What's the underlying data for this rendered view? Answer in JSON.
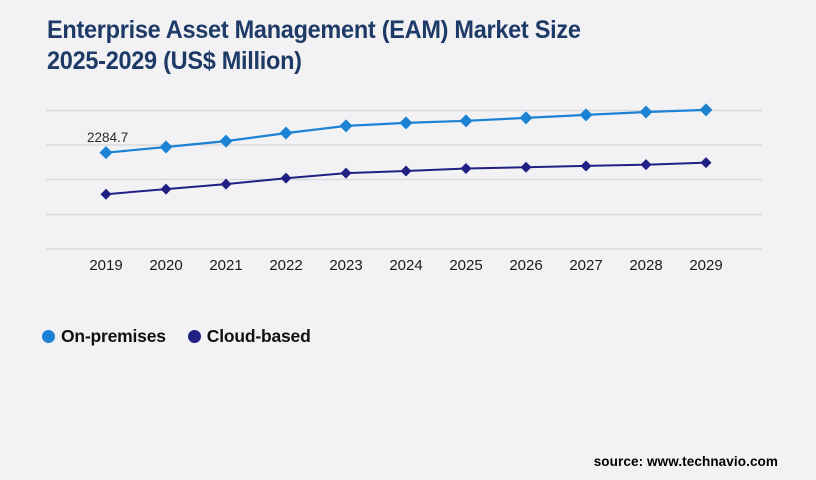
{
  "title": {
    "line1": "Enterprise Asset Management (EAM) Market Size",
    "line2": "2025-2029 (US$ Million)"
  },
  "source_text": "source: www.technavio.com",
  "colors": {
    "background": "#f2f2f4",
    "title": "#1e3a66",
    "gridline": "#d7d7da",
    "on_premises": "#1b82d4",
    "cloud_based": "#202084",
    "axis_text": "#1c1c1c",
    "value_label": "#2b2b2b"
  },
  "legend": {
    "items": [
      {
        "label": "On-premises",
        "color": "#1b82d4"
      },
      {
        "label": "Cloud-based",
        "color": "#202084"
      }
    ]
  },
  "chart_data": {
    "type": "line",
    "title": "Enterprise Asset Management (EAM) Market Size 2025-2029 (US$ Million)",
    "x": [
      2019,
      2020,
      2021,
      2022,
      2023,
      2024,
      2025,
      2026,
      2027,
      2028,
      2029
    ],
    "series": [
      {
        "name": "On-premises",
        "color": "#1b82d4",
        "marker": "diamond",
        "values": [
          2284.7,
          2420,
          2560,
          2750,
          2920,
          2990,
          3040,
          3110,
          3180,
          3250,
          3300
        ]
      },
      {
        "name": "Cloud-based",
        "color": "#202084",
        "marker": "diamond",
        "values": [
          1300,
          1420,
          1540,
          1680,
          1800,
          1850,
          1910,
          1940,
          1970,
          2000,
          2050
        ]
      }
    ],
    "annotations": [
      {
        "series": "On-premises",
        "x": 2019,
        "text": "2284.7"
      }
    ],
    "ylim": [
      0,
      3700
    ],
    "grid": "horizontal",
    "y_axis_labels": false,
    "legend_position": "bottom-left"
  }
}
